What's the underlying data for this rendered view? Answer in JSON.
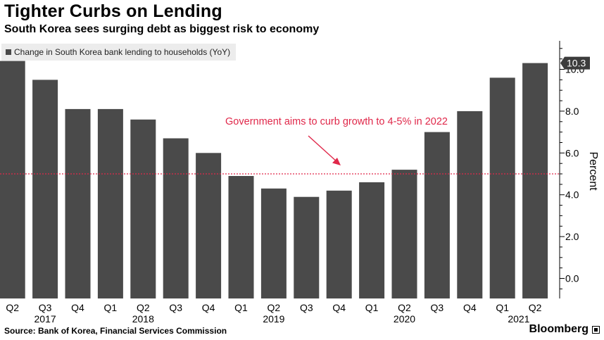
{
  "header": {
    "title": "Tighter Curbs on Lending",
    "subtitle": "South Korea sees surging debt as biggest risk to economy"
  },
  "footer": {
    "source": "Source: Bank of Korea, Financial Services Commission",
    "brand": "Bloomberg"
  },
  "colors": {
    "bar": "#4a4a4a",
    "annotation": "#e0284a",
    "axis": "#000000"
  },
  "chart_data": {
    "type": "bar",
    "categories": [
      "Q2",
      "Q3",
      "Q4",
      "Q1",
      "Q2",
      "Q3",
      "Q4",
      "Q1",
      "Q2",
      "Q3",
      "Q4",
      "Q1",
      "Q2",
      "Q3",
      "Q4",
      "Q1",
      "Q2"
    ],
    "year_labels": [
      {
        "label": "2017",
        "index": 1
      },
      {
        "label": "2018",
        "index": 4
      },
      {
        "label": "2019",
        "index": 8
      },
      {
        "label": "2020",
        "index": 12
      },
      {
        "label": "2021",
        "index": 15.5
      }
    ],
    "series": [
      {
        "name": "Change in South Korea bank lending to households (YoY)",
        "values": [
          10.4,
          9.5,
          8.1,
          8.1,
          7.6,
          6.7,
          6.0,
          4.9,
          4.3,
          3.9,
          4.2,
          4.6,
          5.2,
          7.0,
          8.0,
          9.6,
          10.3
        ]
      }
    ],
    "ylabel": "Percent",
    "ylim": [
      -1,
      11
    ],
    "yticks": [
      0.0,
      2.0,
      4.0,
      6.0,
      8.0,
      10.0
    ],
    "ytick_labels": [
      "0.0",
      "2.0",
      "4.0",
      "6.0",
      "8.0",
      "10.0"
    ],
    "last_value_label": "10.3",
    "reference_line": 5,
    "annotation": "Government aims to curb growth to 4-5% in 2022",
    "legend_position": "top-left",
    "grid": false
  }
}
